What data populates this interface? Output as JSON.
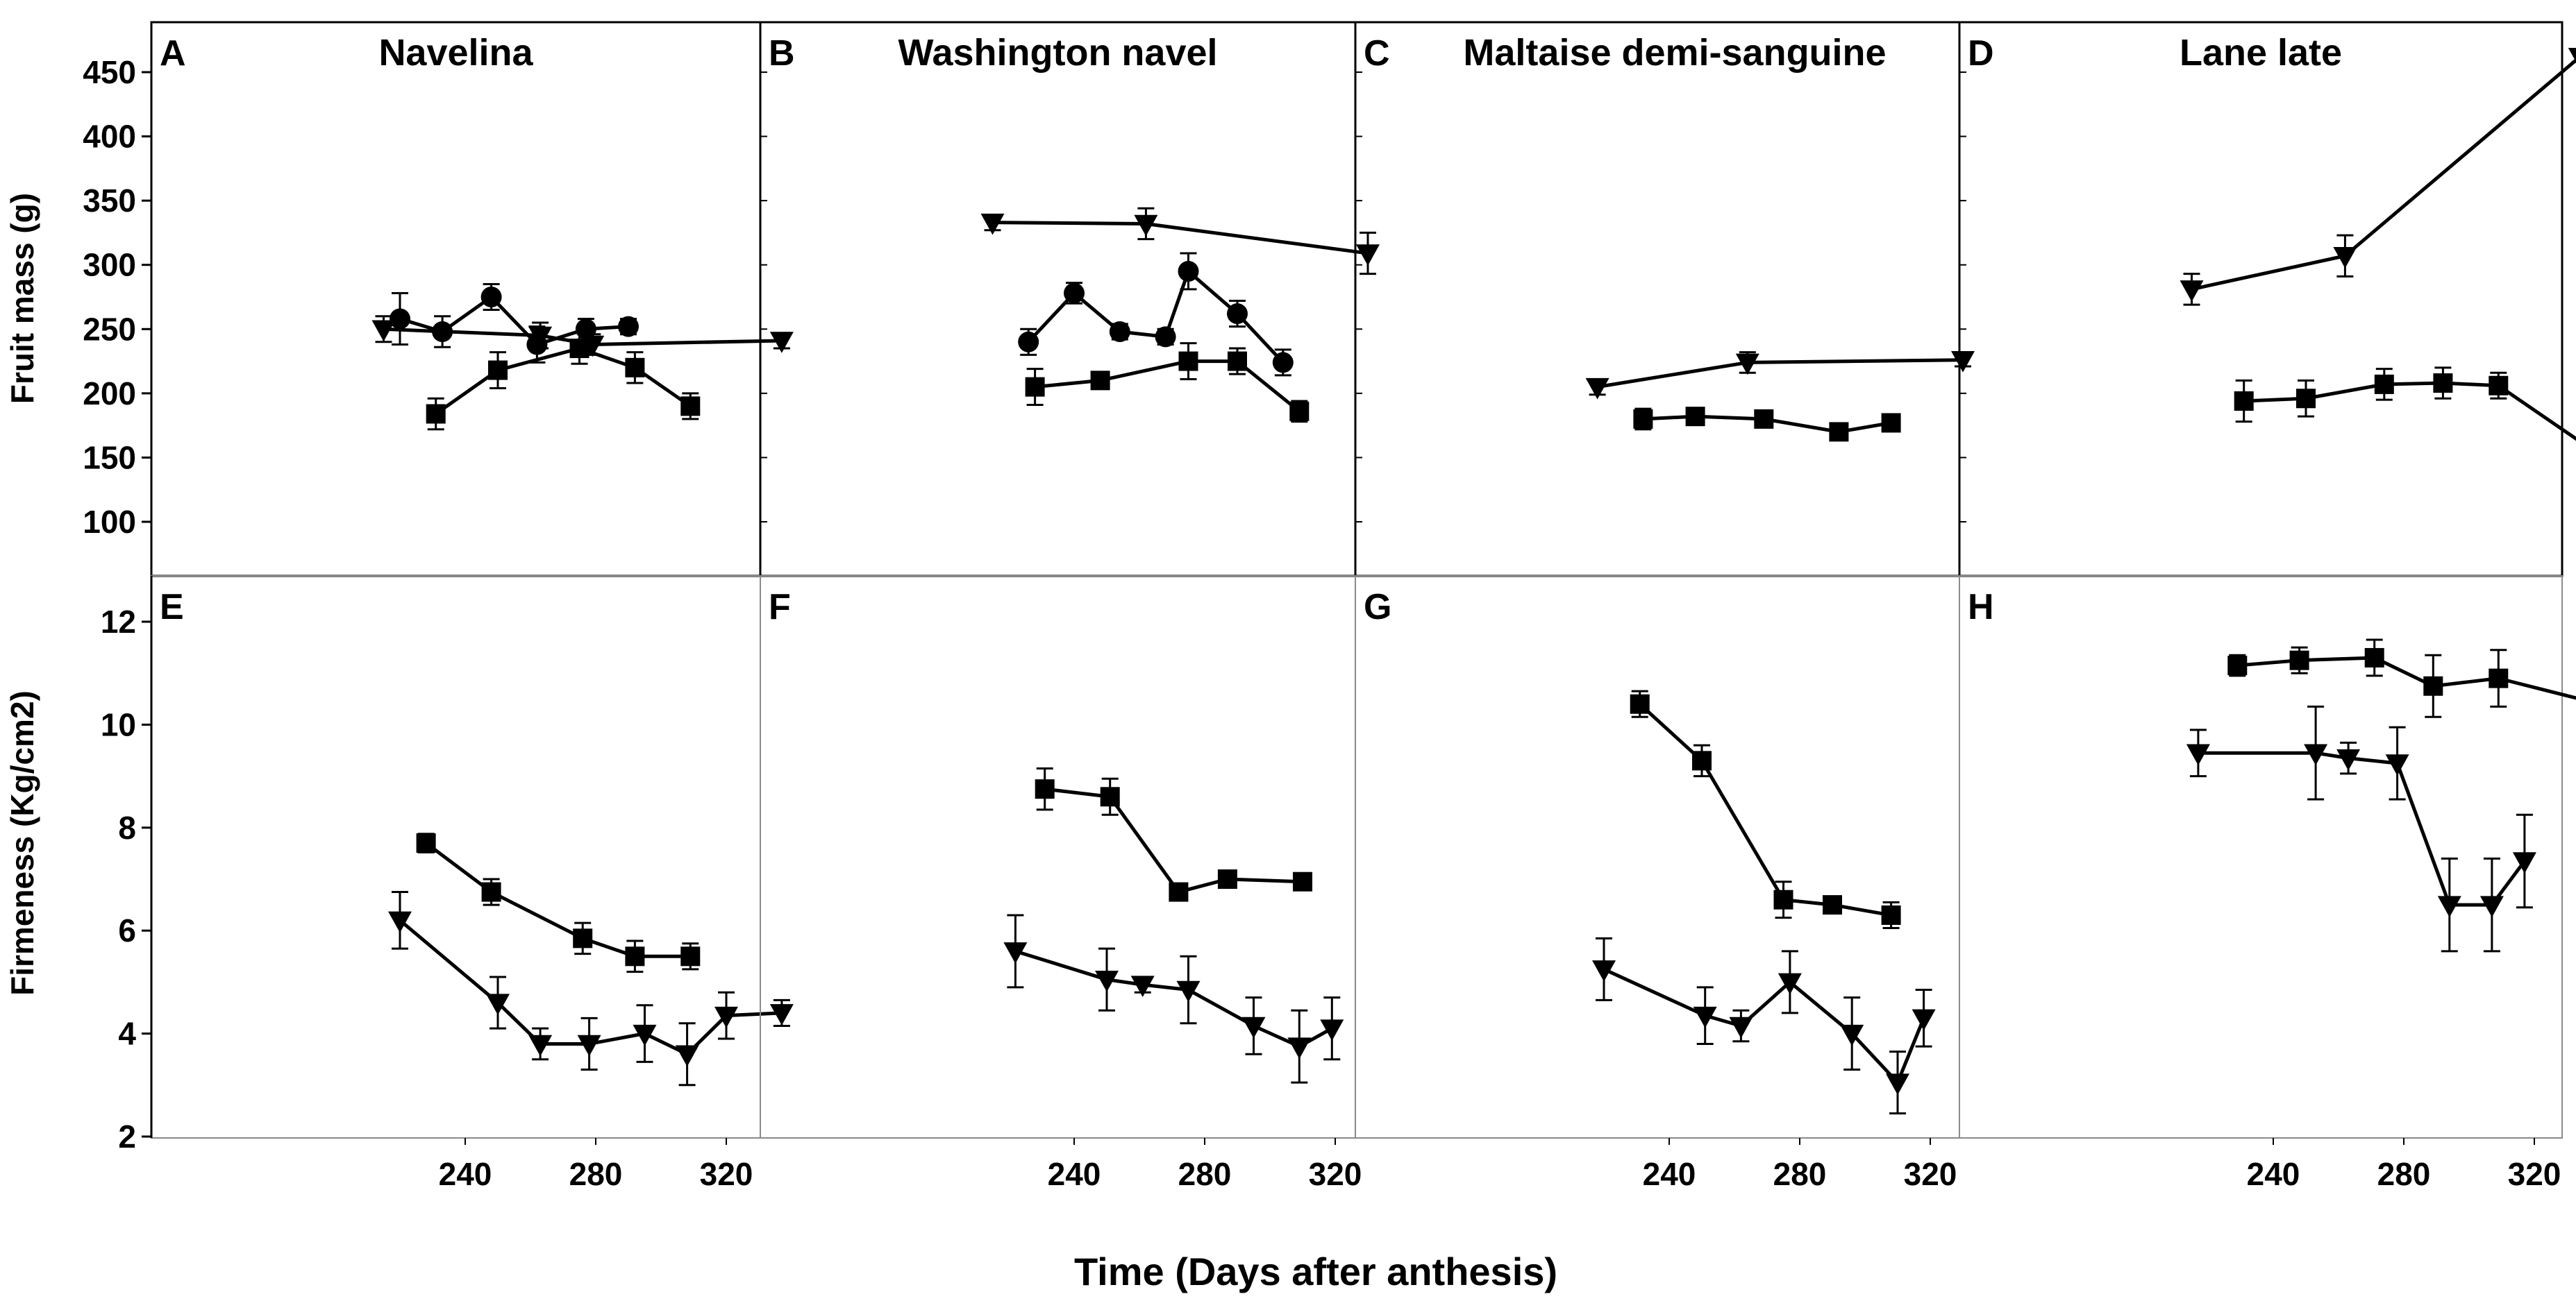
{
  "figure": {
    "x_title": "Time (Days after anthesis)",
    "top_ylabel": "Fruit mass (g)",
    "bottom_ylabel": "Firmeness (Kg/cm2)"
  },
  "chart_data": [
    {
      "panel": "A",
      "title": "Navelina",
      "type": "line",
      "ylabel": "Fruit mass (g)",
      "ylim": [
        75,
        475
      ],
      "yticks": [
        100,
        150,
        200,
        250,
        300,
        350,
        400,
        450
      ],
      "xlim": [
        207,
        343
      ],
      "xticks": [
        240,
        280,
        320
      ],
      "grid": false,
      "series": [
        {
          "marker": "circle",
          "x": [
            220,
            233,
            248,
            262,
            277,
            290
          ],
          "y": [
            258,
            248,
            275,
            238,
            250,
            252
          ],
          "err": [
            20,
            12,
            10,
            14,
            8,
            6
          ]
        },
        {
          "marker": "square",
          "x": [
            231,
            250,
            275,
            292,
            309
          ],
          "y": [
            184,
            218,
            235,
            220,
            190
          ],
          "err": [
            12,
            14,
            12,
            12,
            10
          ]
        },
        {
          "marker": "triangle-down",
          "x": [
            215,
            263,
            279,
            337
          ],
          "y": [
            250,
            245,
            238,
            241
          ],
          "err": [
            10,
            10,
            8,
            6
          ]
        }
      ]
    },
    {
      "panel": "B",
      "title": "Washington navel",
      "type": "line",
      "ylim": [
        75,
        475
      ],
      "yticks": [
        100,
        150,
        200,
        250,
        300,
        350,
        400,
        450
      ],
      "xlim": [
        207,
        343
      ],
      "xticks": [
        240,
        280,
        320
      ],
      "grid": false,
      "series": [
        {
          "marker": "circle",
          "x": [
            226,
            240,
            254,
            268,
            275,
            290,
            304
          ],
          "y": [
            240,
            278,
            248,
            244,
            295,
            262,
            224
          ],
          "err": [
            10,
            8,
            6,
            6,
            14,
            10,
            10
          ]
        },
        {
          "marker": "square",
          "x": [
            228,
            248,
            275,
            290,
            309
          ],
          "y": [
            205,
            210,
            225,
            225,
            186
          ],
          "err": [
            14,
            6,
            14,
            10,
            8
          ]
        },
        {
          "marker": "triangle-down",
          "x": [
            215,
            262,
            330
          ],
          "y": [
            333,
            332,
            309
          ],
          "err": [
            6,
            12,
            16
          ]
        }
      ]
    },
    {
      "panel": "C",
      "title": "Maltaise demi-sanguine",
      "type": "line",
      "ylim": [
        75,
        475
      ],
      "yticks": [
        100,
        150,
        200,
        250,
        300,
        350,
        400,
        450
      ],
      "xlim": [
        207,
        343
      ],
      "xticks": [
        240,
        280,
        320
      ],
      "grid": false,
      "series": [
        {
          "marker": "square",
          "x": [
            232,
            248,
            269,
            292,
            308
          ],
          "y": [
            180,
            182,
            180,
            170,
            177
          ],
          "err": [
            8,
            6,
            6,
            6,
            5
          ]
        },
        {
          "marker": "triangle-down",
          "x": [
            218,
            264,
            330
          ],
          "y": [
            205,
            224,
            226
          ],
          "err": [
            6,
            8,
            5
          ]
        }
      ]
    },
    {
      "panel": "D",
      "title": "Lane late",
      "type": "line",
      "ylim": [
        75,
        475
      ],
      "yticks": [
        100,
        150,
        200,
        250,
        300,
        350,
        400,
        450
      ],
      "xlim": [
        207,
        343
      ],
      "xticks": [
        240,
        280,
        320
      ],
      "grid": false,
      "series": [
        {
          "marker": "square",
          "x": [
            231,
            250,
            274,
            292,
            309,
            336
          ],
          "y": [
            194,
            196,
            207,
            208,
            206,
            159
          ],
          "err": [
            16,
            14,
            12,
            12,
            10,
            14
          ]
        },
        {
          "marker": "triangle-down",
          "x": [
            215,
            262,
            334
          ],
          "y": [
            281,
            307,
            462
          ],
          "err": [
            12,
            16,
            4
          ]
        }
      ]
    },
    {
      "panel": "E",
      "type": "line",
      "ylabel": "Firmeness (Kg/cm2)",
      "ylim": [
        2,
        13
      ],
      "yticks": [
        2,
        4,
        6,
        8,
        10,
        12
      ],
      "xlim": [
        207,
        343
      ],
      "xticks": [
        240,
        280,
        320
      ],
      "grid": false,
      "series": [
        {
          "marker": "square",
          "x": [
            228,
            248,
            276,
            292,
            309
          ],
          "y": [
            7.7,
            6.75,
            5.85,
            5.5,
            5.5
          ],
          "err": [
            0.18,
            0.25,
            0.3,
            0.3,
            0.25
          ]
        },
        {
          "marker": "triangle-down",
          "x": [
            220,
            250,
            263,
            278,
            295,
            308,
            320,
            337
          ],
          "y": [
            6.2,
            4.6,
            3.8,
            3.8,
            4.0,
            3.6,
            4.35,
            4.4
          ],
          "err": [
            0.55,
            0.5,
            0.3,
            0.5,
            0.55,
            0.6,
            0.45,
            0.25
          ]
        }
      ]
    },
    {
      "panel": "F",
      "type": "line",
      "ylim": [
        2,
        13
      ],
      "yticks": [
        2,
        4,
        6,
        8,
        10,
        12
      ],
      "xlim": [
        207,
        343
      ],
      "xticks": [
        240,
        280,
        320
      ],
      "grid": false,
      "series": [
        {
          "marker": "square",
          "x": [
            231,
            251,
            272,
            287,
            310
          ],
          "y": [
            8.75,
            8.6,
            6.75,
            7.0,
            6.95
          ],
          "err": [
            0.4,
            0.35,
            0.15,
            0.15,
            0.15
          ]
        },
        {
          "marker": "triangle-down",
          "x": [
            222,
            250,
            261,
            275,
            295,
            309,
            319
          ],
          "y": [
            5.6,
            5.05,
            4.95,
            4.85,
            4.15,
            3.75,
            4.1
          ],
          "err": [
            0.7,
            0.6,
            0.15,
            0.65,
            0.55,
            0.7,
            0.6
          ]
        }
      ]
    },
    {
      "panel": "G",
      "type": "line",
      "ylim": [
        2,
        13
      ],
      "yticks": [
        2,
        4,
        6,
        8,
        10,
        12
      ],
      "xlim": [
        207,
        343
      ],
      "xticks": [
        240,
        280,
        320
      ],
      "grid": false,
      "series": [
        {
          "marker": "square",
          "x": [
            231,
            250,
            275,
            290,
            308
          ],
          "y": [
            10.4,
            9.3,
            6.6,
            6.5,
            6.3
          ],
          "err": [
            0.25,
            0.3,
            0.35,
            0.15,
            0.25
          ]
        },
        {
          "marker": "triangle-down",
          "x": [
            220,
            251,
            262,
            277,
            296,
            310,
            318
          ],
          "y": [
            5.25,
            4.35,
            4.15,
            5.0,
            4.0,
            3.05,
            4.3
          ],
          "err": [
            0.6,
            0.55,
            0.3,
            0.6,
            0.7,
            0.6,
            0.55
          ]
        }
      ]
    },
    {
      "panel": "H",
      "type": "line",
      "ylim": [
        2,
        13
      ],
      "yticks": [
        2,
        4,
        6,
        8,
        10,
        12
      ],
      "xlim": [
        207,
        343
      ],
      "xticks": [
        240,
        280,
        320
      ],
      "grid": false,
      "series": [
        {
          "marker": "square",
          "x": [
            229,
            248,
            271,
            289,
            309,
            337
          ],
          "y": [
            11.15,
            11.25,
            11.3,
            10.75,
            10.9,
            10.45
          ],
          "err": [
            0.2,
            0.25,
            0.35,
            0.6,
            0.55,
            0.25
          ]
        },
        {
          "marker": "triangle-down",
          "x": [
            217,
            253,
            263,
            278,
            294,
            307,
            317
          ],
          "y": [
            9.45,
            9.45,
            9.35,
            9.25,
            6.5,
            6.5,
            7.35
          ],
          "err": [
            0.45,
            0.9,
            0.3,
            0.7,
            0.9,
            0.9,
            0.9
          ]
        }
      ]
    }
  ]
}
